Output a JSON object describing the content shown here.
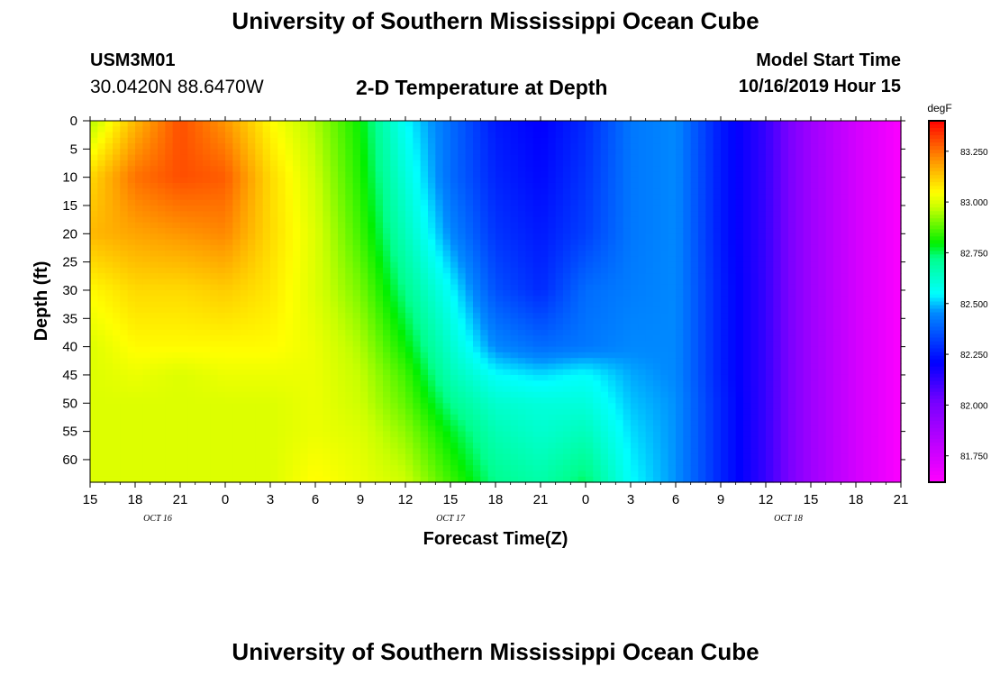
{
  "header": {
    "title": "University of Southern Mississippi Ocean Cube",
    "station_id": "USM3M01",
    "station_coords": "30.0420N 88.6470W",
    "plot_title": "2-D Temperature at Depth",
    "start_label": "Model Start Time",
    "start_value": "10/16/2019 Hour 15"
  },
  "footer": {
    "title": "University of Southern Mississippi Ocean Cube"
  },
  "chart_data": {
    "type": "heatmap",
    "title": "2-D Temperature at Depth",
    "xlabel": "Forecast Time(Z)",
    "ylabel": "Depth (ft)",
    "x_tick_labels": [
      "15",
      "18",
      "21",
      "0",
      "3",
      "6",
      "9",
      "12",
      "15",
      "18",
      "21",
      "0",
      "3",
      "6",
      "9",
      "12",
      "15",
      "18",
      "21"
    ],
    "date_labels": [
      {
        "label": "OCT 16",
        "at_tick": 1.5
      },
      {
        "label": "OCT 17",
        "at_tick": 8
      },
      {
        "label": "OCT 18",
        "at_tick": 15.5
      }
    ],
    "y_ticks": [
      0,
      5,
      10,
      15,
      20,
      25,
      30,
      35,
      40,
      45,
      50,
      55,
      60
    ],
    "ylim": [
      0,
      64
    ],
    "x_range_hours": [
      0,
      54
    ],
    "colorbar": {
      "unit": "degF",
      "min": 81.62,
      "max": 83.4,
      "ticks": [
        81.75,
        82.0,
        82.25,
        82.5,
        82.75,
        83.0,
        83.25
      ],
      "tick_labels": [
        "81.750",
        "82.000",
        "82.250",
        "82.500",
        "82.750",
        "83.000",
        "83.250"
      ]
    },
    "data_grid": {
      "forecast_hours": [
        0,
        3,
        6,
        9,
        12,
        15,
        18,
        21,
        24,
        27,
        30,
        33,
        36,
        39,
        42,
        45,
        48,
        51,
        54
      ],
      "depths_ft": [
        0,
        10,
        20,
        30,
        40,
        45,
        50,
        55,
        64
      ],
      "temperature_degF": [
        [
          82.95,
          83.1,
          83.15,
          83.05,
          83.0,
          83.0,
          83.0,
          83.0,
          83.0
        ],
        [
          83.15,
          83.25,
          83.18,
          83.1,
          83.05,
          83.02,
          83.0,
          83.0,
          83.0
        ],
        [
          83.3,
          83.3,
          83.2,
          83.1,
          83.05,
          83.0,
          83.0,
          83.0,
          83.0
        ],
        [
          83.2,
          83.28,
          83.22,
          83.12,
          83.05,
          83.02,
          83.0,
          83.0,
          83.0
        ],
        [
          83.05,
          83.1,
          83.1,
          83.08,
          83.05,
          83.02,
          83.0,
          83.0,
          83.0
        ],
        [
          82.95,
          82.98,
          83.0,
          83.0,
          83.02,
          83.02,
          83.02,
          83.02,
          83.05
        ],
        [
          82.8,
          82.82,
          82.85,
          82.9,
          82.95,
          82.97,
          82.98,
          83.0,
          83.02
        ],
        [
          82.55,
          82.6,
          82.65,
          82.72,
          82.8,
          82.85,
          82.88,
          82.92,
          82.98
        ],
        [
          82.4,
          82.4,
          82.45,
          82.55,
          82.62,
          82.66,
          82.72,
          82.78,
          82.85
        ],
        [
          82.25,
          82.27,
          82.3,
          82.35,
          82.45,
          82.55,
          82.62,
          82.66,
          82.72
        ],
        [
          82.2,
          82.22,
          82.25,
          82.28,
          82.4,
          82.52,
          82.6,
          82.62,
          82.68
        ],
        [
          82.28,
          82.3,
          82.32,
          82.4,
          82.42,
          82.55,
          82.6,
          82.65,
          82.75
        ],
        [
          82.42,
          82.42,
          82.42,
          82.43,
          82.45,
          82.48,
          82.5,
          82.52,
          82.55
        ],
        [
          82.45,
          82.45,
          82.45,
          82.45,
          82.45,
          82.45,
          82.46,
          82.46,
          82.46
        ],
        [
          82.25,
          82.25,
          82.25,
          82.26,
          82.26,
          82.26,
          82.27,
          82.27,
          82.27
        ],
        [
          82.12,
          82.12,
          82.12,
          82.12,
          82.12,
          82.12,
          82.12,
          82.12,
          82.12
        ],
        [
          81.9,
          81.9,
          81.9,
          81.9,
          81.9,
          81.9,
          81.9,
          81.9,
          81.9
        ],
        [
          81.75,
          81.75,
          81.75,
          81.75,
          81.75,
          81.75,
          81.75,
          81.75,
          81.75
        ],
        [
          81.63,
          81.63,
          81.63,
          81.63,
          81.63,
          81.63,
          81.63,
          81.63,
          81.63
        ]
      ]
    }
  }
}
